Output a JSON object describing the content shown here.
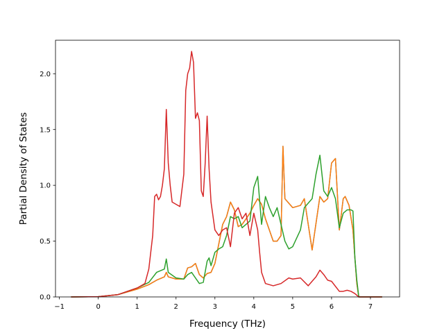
{
  "chart_data": {
    "type": "line",
    "title": "",
    "xlabel": "Frequency (THz)",
    "ylabel": "Partial Density of States",
    "xlim": [
      -1.1,
      7.75
    ],
    "ylim": [
      0.0,
      2.3
    ],
    "xticks": [
      -1,
      0,
      1,
      2,
      3,
      4,
      5,
      6,
      7
    ],
    "yticks": [
      0.0,
      0.5,
      1.0,
      1.5,
      2.0
    ],
    "xtick_labels": [
      "−1",
      "0",
      "1",
      "2",
      "3",
      "4",
      "5",
      "6",
      "7"
    ],
    "ytick_labels": [
      "0.0",
      "0.5",
      "1.0",
      "1.5",
      "2.0"
    ],
    "grid": false,
    "legend": "none",
    "series": [
      {
        "color": "#1f77b4",
        "x": [
          -0.7,
          0,
          0.5,
          1.0,
          1.3,
          1.5,
          1.7,
          1.75,
          1.8,
          2.0,
          2.2,
          2.3,
          2.4,
          2.5,
          2.6,
          2.7,
          2.8,
          2.9,
          3.0,
          3.2,
          3.3,
          3.4,
          3.5,
          3.6,
          3.7,
          3.8,
          3.9,
          4.0,
          4.1,
          4.2,
          4.3,
          4.5,
          4.6,
          4.7,
          4.75,
          4.8,
          4.9,
          5.0,
          5.2,
          5.3,
          5.5,
          5.7,
          5.8,
          5.9,
          6.0,
          6.1,
          6.2,
          6.3,
          6.35,
          6.45,
          6.55,
          6.6,
          6.65,
          6.7,
          7.3
        ],
        "y": [
          0,
          0.002,
          0.02,
          0.07,
          0.11,
          0.15,
          0.18,
          0.22,
          0.18,
          0.16,
          0.16,
          0.26,
          0.27,
          0.3,
          0.2,
          0.17,
          0.21,
          0.22,
          0.3,
          0.65,
          0.72,
          0.85,
          0.78,
          0.63,
          0.65,
          0.7,
          0.75,
          0.82,
          0.88,
          0.83,
          0.7,
          0.5,
          0.5,
          0.55,
          1.35,
          0.88,
          0.84,
          0.8,
          0.82,
          0.88,
          0.42,
          0.9,
          0.85,
          0.88,
          1.2,
          1.24,
          0.6,
          0.88,
          0.9,
          0.82,
          0.6,
          0.35,
          0.12,
          0.0,
          0
        ]
      },
      {
        "color": "#ff7f0e",
        "x": [
          -0.7,
          0,
          0.5,
          1.0,
          1.3,
          1.5,
          1.7,
          1.75,
          1.8,
          2.0,
          2.2,
          2.3,
          2.4,
          2.5,
          2.6,
          2.7,
          2.8,
          2.9,
          3.0,
          3.2,
          3.3,
          3.4,
          3.5,
          3.6,
          3.7,
          3.8,
          3.9,
          4.0,
          4.1,
          4.2,
          4.3,
          4.5,
          4.6,
          4.7,
          4.75,
          4.8,
          4.9,
          5.0,
          5.2,
          5.3,
          5.5,
          5.7,
          5.8,
          5.9,
          6.0,
          6.1,
          6.2,
          6.3,
          6.35,
          6.45,
          6.55,
          6.6,
          6.65,
          6.7,
          7.3
        ],
        "y": [
          0,
          0.002,
          0.02,
          0.07,
          0.11,
          0.15,
          0.18,
          0.22,
          0.18,
          0.16,
          0.16,
          0.26,
          0.27,
          0.3,
          0.2,
          0.17,
          0.21,
          0.22,
          0.3,
          0.65,
          0.72,
          0.85,
          0.78,
          0.63,
          0.65,
          0.7,
          0.75,
          0.82,
          0.88,
          0.83,
          0.7,
          0.5,
          0.5,
          0.55,
          1.35,
          0.88,
          0.84,
          0.8,
          0.82,
          0.88,
          0.42,
          0.9,
          0.85,
          0.88,
          1.2,
          1.24,
          0.6,
          0.88,
          0.9,
          0.82,
          0.6,
          0.35,
          0.12,
          0.0,
          0
        ]
      },
      {
        "color": "#2ca02c",
        "x": [
          -0.7,
          0,
          0.5,
          1.0,
          1.3,
          1.5,
          1.7,
          1.75,
          1.8,
          2.0,
          2.2,
          2.3,
          2.4,
          2.5,
          2.6,
          2.7,
          2.8,
          2.85,
          2.9,
          3.0,
          3.1,
          3.2,
          3.3,
          3.4,
          3.5,
          3.6,
          3.7,
          3.8,
          3.9,
          4.0,
          4.1,
          4.2,
          4.3,
          4.4,
          4.5,
          4.6,
          4.7,
          4.8,
          4.9,
          5.0,
          5.2,
          5.3,
          5.5,
          5.6,
          5.7,
          5.8,
          5.9,
          6.0,
          6.1,
          6.2,
          6.3,
          6.4,
          6.5,
          6.55,
          6.6,
          6.65,
          6.7,
          7.3
        ],
        "y": [
          0,
          0.002,
          0.02,
          0.08,
          0.13,
          0.22,
          0.25,
          0.34,
          0.22,
          0.17,
          0.16,
          0.2,
          0.22,
          0.17,
          0.12,
          0.13,
          0.32,
          0.35,
          0.28,
          0.4,
          0.43,
          0.45,
          0.55,
          0.72,
          0.7,
          0.72,
          0.62,
          0.65,
          0.68,
          0.98,
          1.08,
          0.65,
          0.9,
          0.8,
          0.72,
          0.8,
          0.65,
          0.5,
          0.43,
          0.45,
          0.6,
          0.8,
          0.88,
          1.1,
          1.27,
          0.95,
          0.9,
          0.98,
          0.88,
          0.62,
          0.75,
          0.78,
          0.78,
          0.77,
          0.35,
          0.15,
          0.0,
          0
        ]
      },
      {
        "color": "#d62728",
        "x": [
          -0.7,
          0,
          0.5,
          1.0,
          1.2,
          1.3,
          1.4,
          1.45,
          1.5,
          1.55,
          1.6,
          1.65,
          1.7,
          1.75,
          1.8,
          1.85,
          1.9,
          2.0,
          2.1,
          2.2,
          2.25,
          2.3,
          2.35,
          2.4,
          2.45,
          2.5,
          2.55,
          2.6,
          2.65,
          2.7,
          2.75,
          2.8,
          2.85,
          2.9,
          3.0,
          3.1,
          3.2,
          3.3,
          3.4,
          3.5,
          3.6,
          3.7,
          3.8,
          3.9,
          4.0,
          4.1,
          4.15,
          4.2,
          4.3,
          4.5,
          4.7,
          4.9,
          5.0,
          5.2,
          5.4,
          5.6,
          5.7,
          5.8,
          5.9,
          6.0,
          6.2,
          6.3,
          6.4,
          6.5,
          6.6,
          6.7,
          7.3
        ],
        "y": [
          0,
          0.002,
          0.02,
          0.08,
          0.12,
          0.25,
          0.55,
          0.9,
          0.92,
          0.87,
          0.9,
          1.0,
          1.15,
          1.68,
          1.2,
          1.0,
          0.85,
          0.83,
          0.81,
          1.1,
          1.85,
          2.0,
          2.05,
          2.2,
          2.1,
          1.6,
          1.65,
          1.58,
          0.95,
          0.9,
          1.2,
          1.62,
          1.15,
          0.85,
          0.6,
          0.55,
          0.6,
          0.62,
          0.45,
          0.75,
          0.8,
          0.7,
          0.75,
          0.55,
          0.75,
          0.6,
          0.4,
          0.22,
          0.12,
          0.1,
          0.12,
          0.17,
          0.16,
          0.17,
          0.1,
          0.18,
          0.24,
          0.2,
          0.15,
          0.14,
          0.05,
          0.05,
          0.06,
          0.05,
          0.03,
          0.0,
          0
        ]
      }
    ]
  }
}
